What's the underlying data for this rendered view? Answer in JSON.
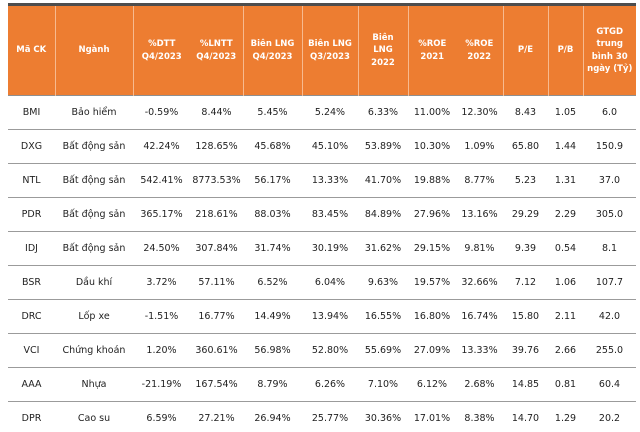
{
  "chart_data": {
    "type": "table",
    "columns": [
      "Mã CK",
      "Ngành",
      "%DTT Q4/2023",
      "%LNTT Q4/2023",
      "Biên LNG Q4/2023",
      "Biên LNG Q3/2023",
      "Biên LNG 2022",
      "%ROE 2021",
      "%ROE 2022",
      "P/E",
      "P/B",
      "GTGD trung bình 30 ngày (Tỷ)"
    ],
    "rows": [
      [
        "BMI",
        "Bảo hiểm",
        "-0.59%",
        "8.44%",
        "5.45%",
        "5.24%",
        "6.33%",
        "11.00%",
        "12.30%",
        "8.43",
        "1.05",
        "6.0"
      ],
      [
        "DXG",
        "Bất động sản",
        "42.24%",
        "128.65%",
        "45.68%",
        "45.10%",
        "53.89%",
        "10.30%",
        "1.09%",
        "65.80",
        "1.44",
        "150.9"
      ],
      [
        "NTL",
        "Bất động sản",
        "542.41%",
        "8773.53%",
        "56.17%",
        "13.33%",
        "41.70%",
        "19.88%",
        "8.77%",
        "5.23",
        "1.31",
        "37.0"
      ],
      [
        "PDR",
        "Bất động sản",
        "365.17%",
        "218.61%",
        "88.03%",
        "83.45%",
        "84.89%",
        "27.96%",
        "13.16%",
        "29.29",
        "2.29",
        "305.0"
      ],
      [
        "IDJ",
        "Bất động sản",
        "24.50%",
        "307.84%",
        "31.74%",
        "30.19%",
        "31.62%",
        "29.15%",
        "9.81%",
        "9.39",
        "0.54",
        "8.1"
      ],
      [
        "BSR",
        "Dầu khí",
        "3.72%",
        "57.11%",
        "6.52%",
        "6.04%",
        "9.63%",
        "19.57%",
        "32.66%",
        "7.12",
        "1.06",
        "107.7"
      ],
      [
        "DRC",
        "Lốp xe",
        "-1.51%",
        "16.77%",
        "14.49%",
        "13.94%",
        "16.55%",
        "16.80%",
        "16.74%",
        "15.80",
        "2.11",
        "42.0"
      ],
      [
        "VCI",
        "Chứng khoán",
        "1.20%",
        "360.61%",
        "56.98%",
        "52.80%",
        "55.69%",
        "27.09%",
        "13.33%",
        "39.76",
        "2.66",
        "255.0"
      ],
      [
        "AAA",
        "Nhựa",
        "-21.19%",
        "167.54%",
        "8.79%",
        "6.26%",
        "7.10%",
        "6.12%",
        "2.68%",
        "14.85",
        "0.81",
        "60.4"
      ],
      [
        "DPR",
        "Cao su",
        "6.59%",
        "27.21%",
        "26.94%",
        "25.77%",
        "30.36%",
        "17.01%",
        "8.38%",
        "14.70",
        "1.29",
        "20.2"
      ]
    ],
    "layout": {
      "header_bg": "#ED7D31",
      "header_text_color": "#FFFFFF",
      "body_text_color": "#1F1F1F",
      "row_separator_color": "#9B9B9B",
      "top_border_color": "#4D4D4D",
      "grid": "horizontal-only"
    }
  }
}
